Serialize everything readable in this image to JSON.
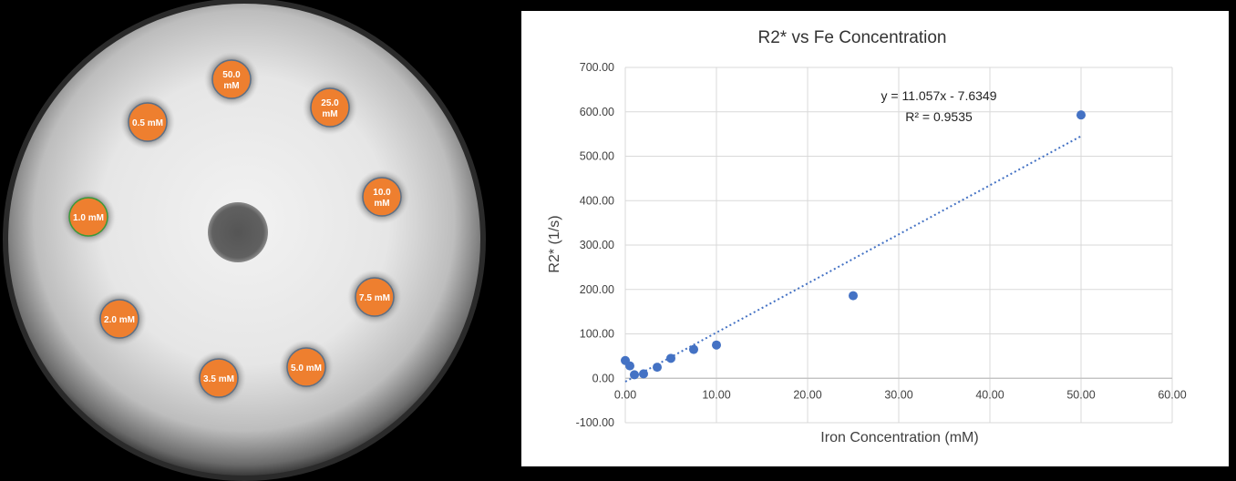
{
  "phantom": {
    "vials": [
      {
        "line1": "50.0",
        "line2": "mM"
      },
      {
        "line1": "25.0",
        "line2": "mM"
      },
      {
        "line1": "0.5 mM",
        "line2": ""
      },
      {
        "line1": "10.0",
        "line2": "mM"
      },
      {
        "line1": "1.0 mM",
        "line2": ""
      },
      {
        "line1": "7.5 mM",
        "line2": ""
      },
      {
        "line1": "2.0 mM",
        "line2": ""
      },
      {
        "line1": "5.0 mM",
        "line2": ""
      },
      {
        "line1": "3.5 mM",
        "line2": ""
      }
    ],
    "colors": {
      "vial_fill": "#ee7f2f",
      "vial_ring": "#5b6f86",
      "vial_ring_green": "#3a9a3a"
    }
  },
  "chart_data": {
    "type": "scatter",
    "title": "R2* vs Fe Concentration",
    "xlabel": "Iron Concentration (mM)",
    "ylabel": "R2* (1/s)",
    "xlim": [
      0,
      60
    ],
    "ylim": [
      -100,
      700
    ],
    "x_ticks": [
      "0.00",
      "10.00",
      "20.00",
      "30.00",
      "40.00",
      "50.00",
      "60.00"
    ],
    "y_ticks": [
      "-100.00",
      "0.00",
      "100.00",
      "200.00",
      "300.00",
      "400.00",
      "500.00",
      "600.00",
      "700.00"
    ],
    "grid": true,
    "points": [
      {
        "x": 0,
        "y": 40
      },
      {
        "x": 0.5,
        "y": 28
      },
      {
        "x": 1.0,
        "y": 8
      },
      {
        "x": 2.0,
        "y": 10
      },
      {
        "x": 3.5,
        "y": 25
      },
      {
        "x": 5.0,
        "y": 45
      },
      {
        "x": 7.5,
        "y": 65
      },
      {
        "x": 10.0,
        "y": 75
      },
      {
        "x": 25.0,
        "y": 186
      },
      {
        "x": 50.0,
        "y": 593
      }
    ],
    "trendline": {
      "slope": 11.057,
      "intercept": -7.6349,
      "x_range": [
        0,
        50
      ]
    },
    "trend_equation": "y = 11.057x - 7.6349",
    "r_squared": "R² = 0.9535",
    "colors": {
      "point": "#4472c4",
      "trendline": "#4472c4",
      "grid": "#d9d9d9"
    }
  }
}
